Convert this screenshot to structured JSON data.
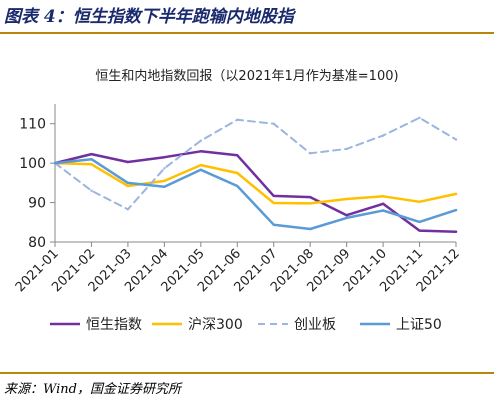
{
  "figure": {
    "title": "图表 4：恒生指数下半年跑输内地股指",
    "source": "来源：Wind，国金证券研究所"
  },
  "colors": {
    "rule": "#b8860b",
    "title": "#1a2a6c"
  },
  "chart_data": {
    "type": "line",
    "title": "恒生和内地指数回报（以2021年1月作为基准=100)",
    "xlabel": "",
    "ylabel": "",
    "categories": [
      "2021-01",
      "2021-02",
      "2021-03",
      "2021-04",
      "2021-05",
      "2021-06",
      "2021-07",
      "2021-08",
      "2021-09",
      "2021-10",
      "2021-11",
      "2021-12"
    ],
    "ylim": [
      80,
      115
    ],
    "yticks": [
      80,
      90,
      100,
      110
    ],
    "grid": false,
    "legend_position": "bottom",
    "series": [
      {
        "name": "恒生指数",
        "color": "#7030a0",
        "dash": false,
        "values": [
          100,
          102.3,
          100.3,
          101.5,
          103,
          102,
          91.7,
          91.4,
          86.8,
          89.7,
          82.9,
          82.6
        ]
      },
      {
        "name": "沪深300",
        "color": "#ffc000",
        "dash": false,
        "values": [
          100,
          99.7,
          94.2,
          95.5,
          99.5,
          97.5,
          89.9,
          89.8,
          90.9,
          91.6,
          90.2,
          92.2
        ]
      },
      {
        "name": "创业板",
        "color": "#9ab6e0",
        "dash": true,
        "values": [
          100,
          93,
          88.3,
          98.7,
          105.7,
          111,
          110,
          102.5,
          103.6,
          107,
          111.5,
          106
        ]
      },
      {
        "name": "上证50",
        "color": "#5b9bd5",
        "dash": false,
        "values": [
          100,
          101,
          95,
          94,
          98.3,
          94.2,
          84.4,
          83.3,
          86.1,
          88,
          85.1,
          88.1
        ]
      }
    ]
  }
}
